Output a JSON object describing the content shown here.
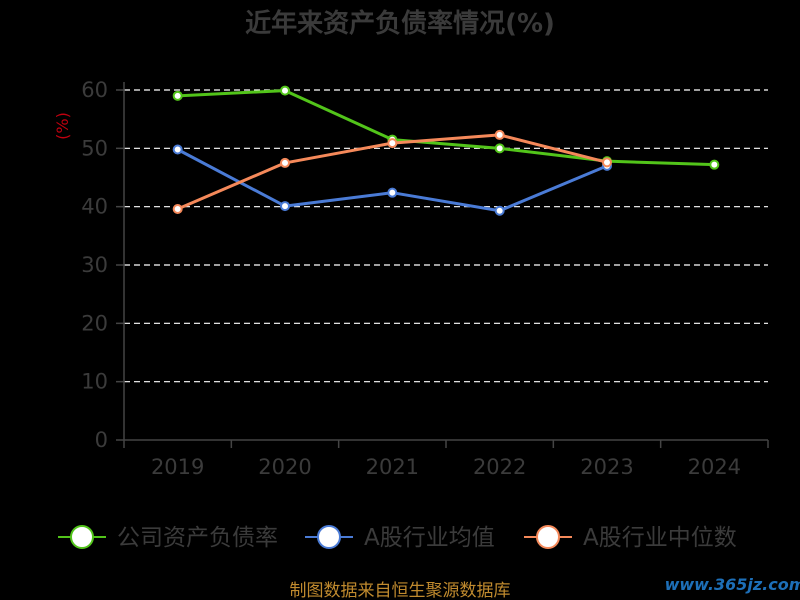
{
  "chart_data": {
    "type": "line",
    "title": "近年来资产负债率情况(%)",
    "ylabel": "(%)",
    "xlabel": "",
    "ylim": [
      0,
      60
    ],
    "yticks": [
      0,
      10,
      20,
      30,
      40,
      50,
      60
    ],
    "categories": [
      "2019",
      "2020",
      "2021",
      "2022",
      "2023",
      "2024"
    ],
    "grid": true,
    "legend_position": "bottom",
    "series": [
      {
        "name": "公司资产负债率",
        "color": "#52c41a",
        "values": [
          59.0,
          59.9,
          51.5,
          50.0,
          47.8,
          47.2
        ]
      },
      {
        "name": "A股行业均值",
        "color": "#4a7bd6",
        "values": [
          49.8,
          40.1,
          42.4,
          39.3,
          47.0,
          null
        ]
      },
      {
        "name": "A股行业中位数",
        "color": "#f5895a",
        "values": [
          39.6,
          47.5,
          50.9,
          52.3,
          47.6,
          null
        ]
      }
    ]
  },
  "footer": {
    "source": "制图数据来自恒生聚源数据库",
    "watermark": "www.365jz.com"
  }
}
